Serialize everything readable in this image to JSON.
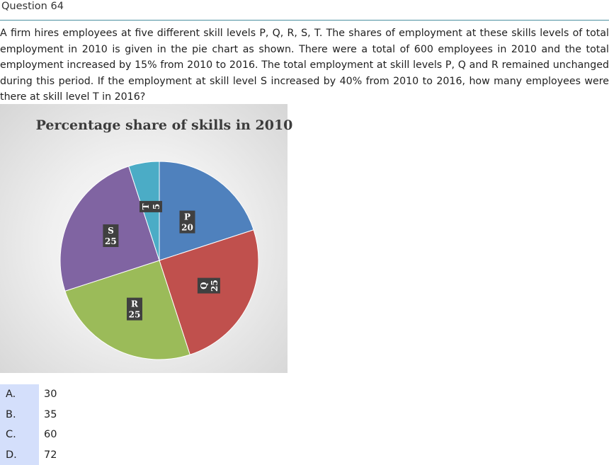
{
  "question": {
    "title": "Question 64",
    "text": "A firm hires employees at five different skill levels P, Q, R, S, T. The shares of employment at these skills levels of total employment in 2010 is given in the pie chart as shown. There were a total of 600 employees in 2010 and the total employment increased by 15% from 2010 to 2016. The total employment at skill levels P, Q and R remained unchanged during this period. If the employment at skill level S increased by 40% from 2010 to 2016, how many employees were there at skill level T in 2016?"
  },
  "chart_data": {
    "type": "pie",
    "title": "Percentage share of skills in 2010",
    "slices": [
      {
        "name": "P",
        "value": 20,
        "color": "#4f81bd"
      },
      {
        "name": "Q",
        "value": 25,
        "color": "#c0504d"
      },
      {
        "name": "R",
        "value": 25,
        "color": "#9bbb59"
      },
      {
        "name": "S",
        "value": 25,
        "color": "#8064a2"
      },
      {
        "name": "T",
        "value": 5,
        "color": "#4bacc6"
      }
    ],
    "label_background": "#404040"
  },
  "options": [
    {
      "key": "A.",
      "value": "30"
    },
    {
      "key": "B.",
      "value": "35"
    },
    {
      "key": "C.",
      "value": "60"
    },
    {
      "key": "D.",
      "value": "72"
    }
  ]
}
